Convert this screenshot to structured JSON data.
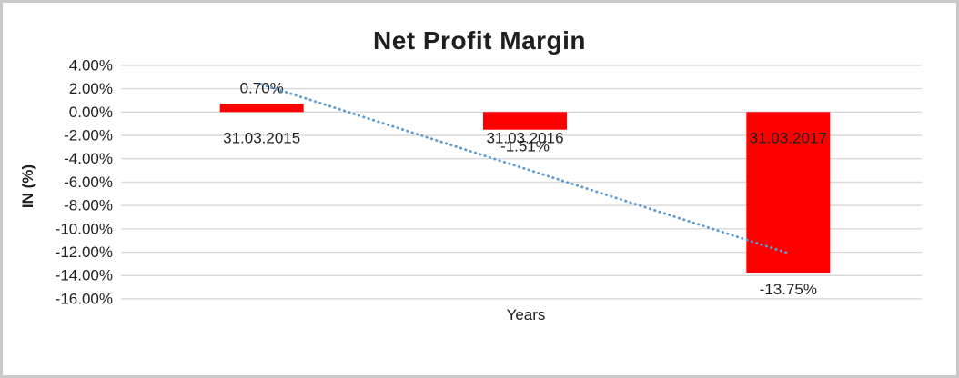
{
  "window": {
    "background_color": "#ffffff",
    "border_color": "#c9c9c9"
  },
  "chart_data": {
    "type": "bar",
    "title": "Net Profit Margin",
    "xlabel": "Years",
    "ylabel": "IN (%)",
    "categories": [
      "31.03.2015",
      "31.03.2016",
      "31.03.2017"
    ],
    "values": [
      0.7,
      -1.51,
      -13.75
    ],
    "value_labels": [
      "0.70%",
      "-1.51%",
      "-13.75%"
    ],
    "ytick_labels": [
      "4.00%",
      "2.00%",
      "0.00%",
      "-2.00%",
      "-4.00%",
      "-6.00%",
      "-8.00%",
      "-10.00%",
      "-12.00%",
      "-14.00%",
      "-16.00%"
    ],
    "ytick_values": [
      4,
      2,
      0,
      -2,
      -4,
      -6,
      -8,
      -10,
      -12,
      -14,
      -16
    ],
    "ylim": [
      -16,
      4
    ],
    "grid": true,
    "legend": "none",
    "bar_color": "#FF0000",
    "gridline_color": "#D9D9D9",
    "trendline": {
      "type": "linear",
      "style": "dotted",
      "color": "#5B9BD5",
      "start_value": 2.37,
      "end_value": -12.08
    }
  }
}
